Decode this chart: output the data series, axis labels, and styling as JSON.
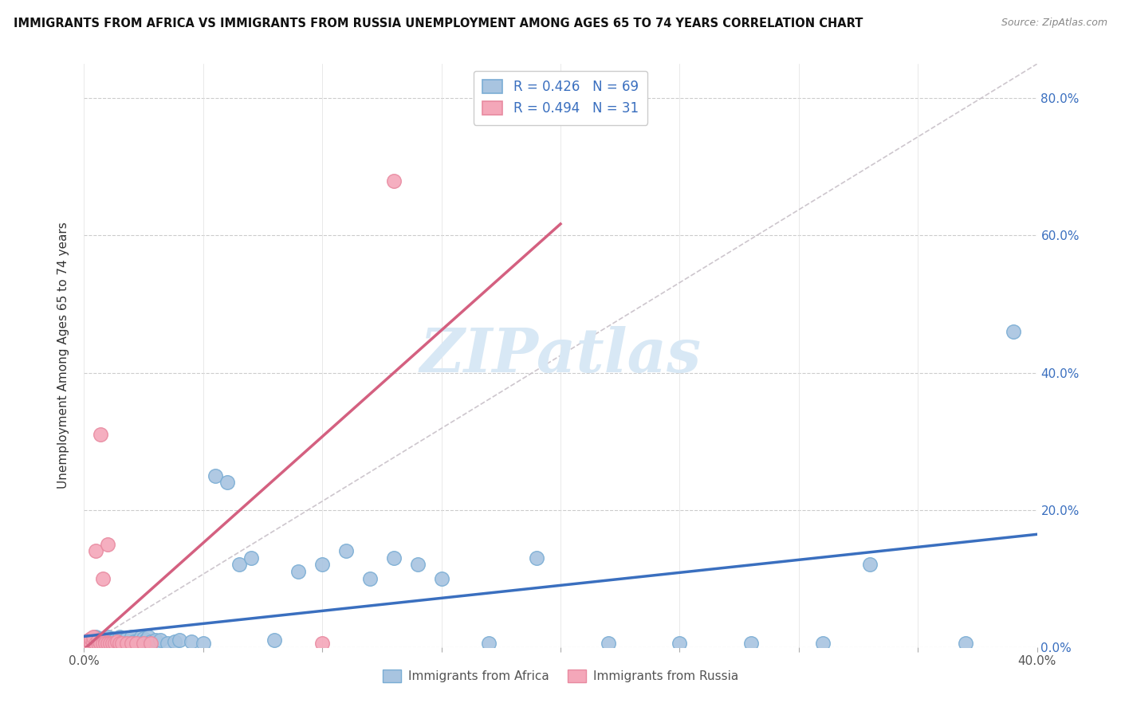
{
  "title": "IMMIGRANTS FROM AFRICA VS IMMIGRANTS FROM RUSSIA UNEMPLOYMENT AMONG AGES 65 TO 74 YEARS CORRELATION CHART",
  "source": "Source: ZipAtlas.com",
  "ylabel": "Unemployment Among Ages 65 to 74 years",
  "right_yticks": [
    "0.0%",
    "20.0%",
    "40.0%",
    "60.0%",
    "80.0%"
  ],
  "right_ytick_vals": [
    0.0,
    0.2,
    0.4,
    0.6,
    0.8
  ],
  "xlim": [
    0.0,
    0.4
  ],
  "ylim": [
    0.0,
    0.85
  ],
  "africa_R": 0.426,
  "africa_N": 69,
  "russia_R": 0.494,
  "russia_N": 31,
  "africa_color": "#a8c4e0",
  "russia_color": "#f4a7b9",
  "africa_edge_color": "#7aadd4",
  "russia_edge_color": "#e88aa0",
  "africa_line_color": "#3a6fbf",
  "russia_line_color": "#d46080",
  "diagonal_color": "#c8c0c8",
  "watermark": "ZIPatlas",
  "legend_africa_label": "Immigrants from Africa",
  "legend_russia_label": "Immigrants from Russia",
  "africa_x": [
    0.003,
    0.004,
    0.005,
    0.005,
    0.006,
    0.006,
    0.007,
    0.007,
    0.008,
    0.008,
    0.009,
    0.009,
    0.01,
    0.01,
    0.01,
    0.011,
    0.011,
    0.012,
    0.012,
    0.013,
    0.013,
    0.014,
    0.015,
    0.015,
    0.015,
    0.016,
    0.017,
    0.018,
    0.018,
    0.019,
    0.02,
    0.02,
    0.021,
    0.022,
    0.023,
    0.024,
    0.025,
    0.025,
    0.026,
    0.027,
    0.028,
    0.03,
    0.032,
    0.035,
    0.038,
    0.04,
    0.045,
    0.05,
    0.055,
    0.06,
    0.065,
    0.07,
    0.08,
    0.09,
    0.1,
    0.11,
    0.12,
    0.13,
    0.14,
    0.15,
    0.17,
    0.19,
    0.22,
    0.25,
    0.28,
    0.31,
    0.33,
    0.37,
    0.39
  ],
  "africa_y": [
    0.01,
    0.005,
    0.01,
    0.015,
    0.008,
    0.012,
    0.005,
    0.008,
    0.01,
    0.012,
    0.005,
    0.01,
    0.008,
    0.012,
    0.015,
    0.005,
    0.01,
    0.008,
    0.012,
    0.005,
    0.01,
    0.008,
    0.005,
    0.01,
    0.015,
    0.008,
    0.01,
    0.005,
    0.012,
    0.008,
    0.01,
    0.015,
    0.008,
    0.005,
    0.01,
    0.015,
    0.008,
    0.012,
    0.01,
    0.015,
    0.008,
    0.01,
    0.01,
    0.005,
    0.008,
    0.01,
    0.008,
    0.005,
    0.25,
    0.24,
    0.12,
    0.13,
    0.01,
    0.11,
    0.12,
    0.14,
    0.1,
    0.13,
    0.12,
    0.1,
    0.005,
    0.13,
    0.005,
    0.005,
    0.005,
    0.005,
    0.12,
    0.005,
    0.46
  ],
  "russia_x": [
    0.001,
    0.002,
    0.003,
    0.003,
    0.004,
    0.004,
    0.005,
    0.005,
    0.006,
    0.006,
    0.007,
    0.007,
    0.008,
    0.008,
    0.009,
    0.009,
    0.01,
    0.01,
    0.011,
    0.012,
    0.013,
    0.014,
    0.015,
    0.016,
    0.018,
    0.02,
    0.022,
    0.025,
    0.028,
    0.1,
    0.13
  ],
  "russia_y": [
    0.005,
    0.01,
    0.005,
    0.012,
    0.008,
    0.015,
    0.005,
    0.14,
    0.005,
    0.01,
    0.005,
    0.31,
    0.005,
    0.1,
    0.008,
    0.005,
    0.005,
    0.15,
    0.005,
    0.005,
    0.005,
    0.008,
    0.005,
    0.005,
    0.005,
    0.005,
    0.005,
    0.005,
    0.005,
    0.005,
    0.68
  ]
}
